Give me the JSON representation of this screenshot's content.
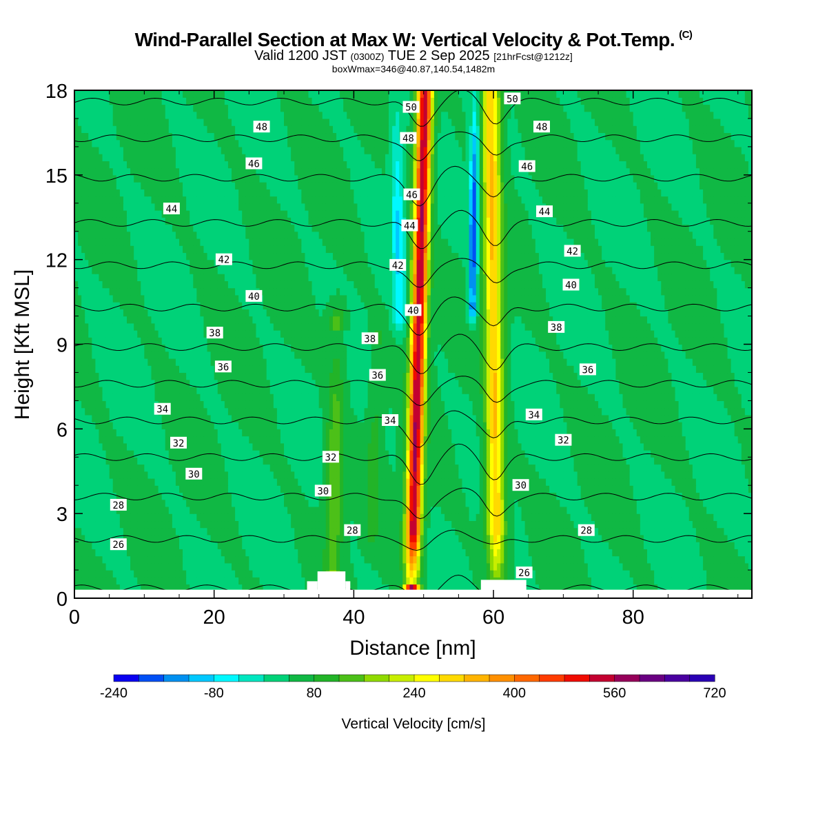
{
  "header": {
    "title": "Wind-Parallel Section at Max W: Vertical Velocity & Pot.Temp.",
    "copyright": "(C)",
    "valid_a": "Valid 1200 JST",
    "valid_b": "(0300Z)",
    "valid_c": "TUE 2 Sep 2025",
    "valid_d": "[21hrFcst@1212z]",
    "box_info": "boxWmax=346@40.87,140.54,1482m"
  },
  "chart_data": {
    "type": "heatmap",
    "title": "Wind-Parallel Section at Max W: Vertical Velocity & Pot.Temp.",
    "xlabel": "Distance [nm]",
    "ylabel": "Height [Kft MSL]",
    "xlim": [
      0,
      97
    ],
    "ylim": [
      0,
      18
    ],
    "xticks": [
      0,
      20,
      40,
      60,
      80
    ],
    "yticks": [
      0,
      3,
      6,
      9,
      12,
      15,
      18
    ],
    "terrain": [
      {
        "x0": 33.3,
        "x1": 34.8,
        "top": 0.6
      },
      {
        "x0": 34.8,
        "x1": 38.8,
        "top": 0.95
      },
      {
        "x0": 38.8,
        "x1": 39.5,
        "top": 0.6
      },
      {
        "x0": 58.2,
        "x1": 64.7,
        "top": 0.65
      }
    ],
    "velocity_field": {
      "units": "cm/s",
      "background": 40,
      "features": [
        {
          "name": "main-updraft",
          "x_base": 48.3,
          "x_top": 50.2,
          "z0": 0.4,
          "width": 1.1,
          "peak": 560
        },
        {
          "name": "second-updraft",
          "x_base": 60.5,
          "x_top": 59.6,
          "z0": 0.4,
          "width": 1.3,
          "peak": 320
        },
        {
          "name": "west-updraft",
          "x_base": 37.0,
          "x_top": 37.6,
          "z0": 1.0,
          "z1": 9.6,
          "width": 1.2,
          "peak": 160
        },
        {
          "name": "weak-updraft",
          "x_base": 42.5,
          "x_top": 43.5,
          "z0": 2.5,
          "z1": 9.0,
          "width": 1.0,
          "peak": 100
        },
        {
          "name": "central-downdraft",
          "x_base": 57.0,
          "x_top": 57.4,
          "z0": 10.5,
          "z1": 18,
          "width": 0.6,
          "peak": -200
        },
        {
          "name": "west-downdraft",
          "x_base": 46.6,
          "x_top": 46.0,
          "z0": 10.0,
          "z1": 18,
          "width": 0.9,
          "peak": -80
        }
      ]
    },
    "colorbar": {
      "label": "Vertical Velocity [cm/s]",
      "min": -240,
      "max": 720,
      "step": 40,
      "tick_labels": [
        "-240",
        "-80",
        "80",
        "240",
        "400",
        "560",
        "720"
      ],
      "colors": [
        "#0a00f0",
        "#0050f5",
        "#0090f0",
        "#00c8ff",
        "#00f8ff",
        "#00e6c0",
        "#00d278",
        "#10b844",
        "#22b428",
        "#4cc018",
        "#90da00",
        "#c8ee00",
        "#ffff00",
        "#ffda00",
        "#ffb400",
        "#ff9000",
        "#ff6800",
        "#ff3c00",
        "#f00c00",
        "#c40030",
        "#96005a",
        "#6a0082",
        "#4a00a0",
        "#2a00b4"
      ]
    },
    "theta_contours": {
      "units": "potential temperature",
      "levels": [
        {
          "v": 26,
          "z": 0.35
        },
        {
          "v": 28,
          "z": 2.1
        },
        {
          "v": 30,
          "z": 3.6
        },
        {
          "v": 32,
          "z": 5.0
        },
        {
          "v": 34,
          "z": 6.3
        },
        {
          "v": 36,
          "z": 7.6
        },
        {
          "v": 38,
          "z": 8.9
        },
        {
          "v": 40,
          "z": 10.3
        },
        {
          "v": 42,
          "z": 11.8
        },
        {
          "v": 44,
          "z": 13.3
        },
        {
          "v": 46,
          "z": 14.9
        },
        {
          "v": 48,
          "z": 16.3
        },
        {
          "v": 50,
          "z": 17.6
        }
      ],
      "labels": [
        {
          "text": "26",
          "x": 6.3,
          "z": 1.9
        },
        {
          "text": "28",
          "x": 6.3,
          "z": 3.3
        },
        {
          "text": "30",
          "x": 17.1,
          "z": 4.4
        },
        {
          "text": "32",
          "x": 14.9,
          "z": 5.5
        },
        {
          "text": "34",
          "x": 12.6,
          "z": 6.7
        },
        {
          "text": "36",
          "x": 21.3,
          "z": 8.2
        },
        {
          "text": "38",
          "x": 20.1,
          "z": 9.4
        },
        {
          "text": "40",
          "x": 25.7,
          "z": 10.7
        },
        {
          "text": "42",
          "x": 21.4,
          "z": 12.0
        },
        {
          "text": "44",
          "x": 13.9,
          "z": 13.8
        },
        {
          "text": "46",
          "x": 25.7,
          "z": 15.4
        },
        {
          "text": "48",
          "x": 26.8,
          "z": 16.7
        },
        {
          "text": "32",
          "x": 36.7,
          "z": 5.0
        },
        {
          "text": "30",
          "x": 35.6,
          "z": 3.8
        },
        {
          "text": "28",
          "x": 39.8,
          "z": 2.4
        },
        {
          "text": "38",
          "x": 42.3,
          "z": 9.2
        },
        {
          "text": "36",
          "x": 43.4,
          "z": 7.9
        },
        {
          "text": "34",
          "x": 45.2,
          "z": 6.3
        },
        {
          "text": "42",
          "x": 46.3,
          "z": 11.8
        },
        {
          "text": "40",
          "x": 48.5,
          "z": 10.2
        },
        {
          "text": "44",
          "x": 48.0,
          "z": 13.2
        },
        {
          "text": "46",
          "x": 48.3,
          "z": 14.3
        },
        {
          "text": "48",
          "x": 47.8,
          "z": 16.3
        },
        {
          "text": "50",
          "x": 48.2,
          "z": 17.4
        },
        {
          "text": "50",
          "x": 62.7,
          "z": 17.7
        },
        {
          "text": "48",
          "x": 66.9,
          "z": 16.7
        },
        {
          "text": "46",
          "x": 64.8,
          "z": 15.3
        },
        {
          "text": "44",
          "x": 67.3,
          "z": 13.7
        },
        {
          "text": "42",
          "x": 71.3,
          "z": 12.3
        },
        {
          "text": "40",
          "x": 71.1,
          "z": 11.1
        },
        {
          "text": "38",
          "x": 69.0,
          "z": 9.6
        },
        {
          "text": "36",
          "x": 73.5,
          "z": 8.1
        },
        {
          "text": "34",
          "x": 65.8,
          "z": 6.5
        },
        {
          "text": "32",
          "x": 70.0,
          "z": 5.6
        },
        {
          "text": "30",
          "x": 63.9,
          "z": 4.0
        },
        {
          "text": "28",
          "x": 73.3,
          "z": 2.4
        },
        {
          "text": "26",
          "x": 64.4,
          "z": 0.9
        }
      ]
    }
  }
}
